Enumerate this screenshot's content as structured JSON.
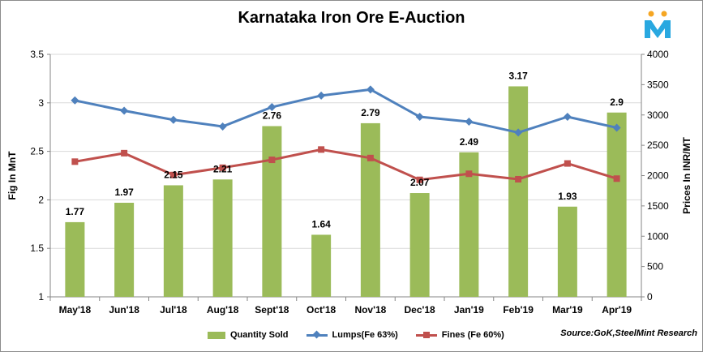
{
  "title": "Karnataka Iron Ore E-Auction",
  "source": "Source:GoK,SteelMint Research",
  "logo": {
    "icon": "steelmint-logo-icon",
    "color": "#29a8e0",
    "accent": "#f5a623"
  },
  "chart_data": {
    "type": "bar+line",
    "categories": [
      "May'18",
      "Jun'18",
      "Jul'18",
      "Aug'18",
      "Sept'18",
      "Oct'18",
      "Nov'18",
      "Dec'18",
      "Jan'19",
      "Feb'19",
      "Mar'19",
      "Apr'19"
    ],
    "bar_series": {
      "name": "Quantity Sold",
      "axis": "left",
      "color": "#9bbb59",
      "values": [
        1.77,
        1.97,
        2.15,
        2.21,
        2.76,
        1.64,
        2.79,
        2.07,
        2.49,
        3.17,
        1.93,
        2.9
      ],
      "labels": [
        "1.77",
        "1.97",
        "2.15",
        "2.21",
        "2.76",
        "1.64",
        "2.79",
        "2.07",
        "2.49",
        "3.17",
        "1.93",
        "2.9"
      ]
    },
    "line_series": [
      {
        "name": "Lumps(Fe 63%)",
        "axis": "right",
        "color": "#4f81bd",
        "marker": "diamond",
        "values": [
          3240,
          3070,
          2920,
          2810,
          3130,
          3320,
          3420,
          2970,
          2890,
          2710,
          2970,
          2790
        ]
      },
      {
        "name": "Fines (Fe 60%)",
        "axis": "right",
        "color": "#c0504d",
        "marker": "square",
        "values": [
          2230,
          2370,
          2010,
          2130,
          2260,
          2430,
          2290,
          1930,
          2030,
          1940,
          2200,
          1950
        ]
      }
    ],
    "y_left": {
      "label": "Fig In MnT",
      "range": [
        1,
        3.5
      ],
      "ticks": [
        "1",
        "1.5",
        "2",
        "2.5",
        "3",
        "3.5"
      ]
    },
    "y_right": {
      "label": "Prices In INR/MT",
      "range": [
        0,
        4000
      ],
      "ticks": [
        "0",
        "500",
        "1000",
        "1500",
        "2000",
        "2500",
        "3000",
        "3500",
        "4000"
      ]
    },
    "grid": true,
    "legend_position": "bottom"
  }
}
